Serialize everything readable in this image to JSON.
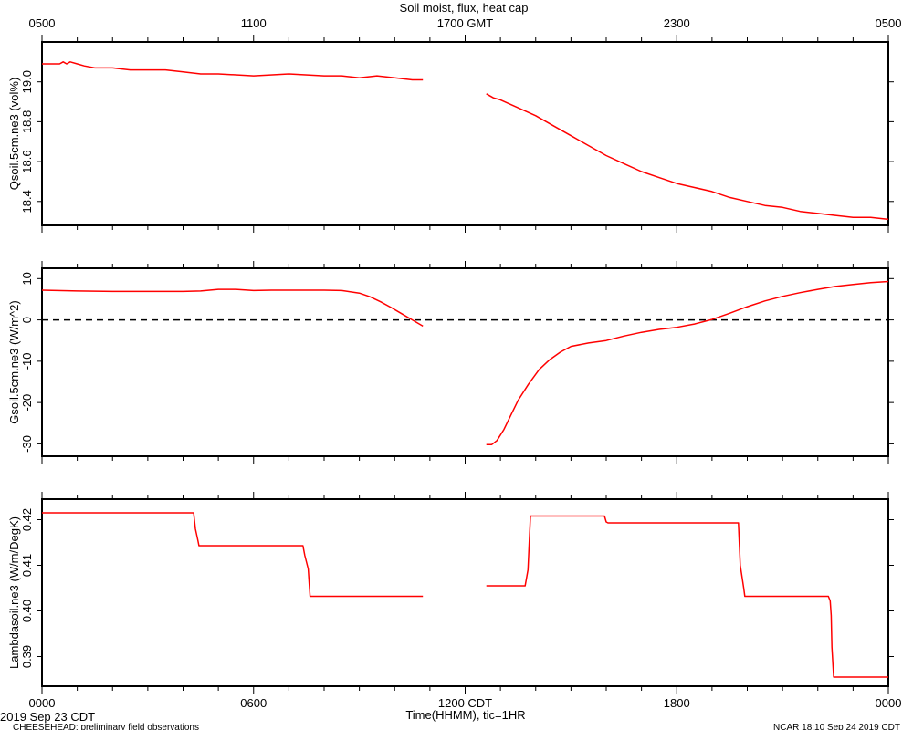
{
  "title": "Soil moist, flux, heat cap",
  "top_axis": {
    "ticks": [
      "0500",
      "1100",
      "1700 GMT",
      "2300",
      "0500"
    ]
  },
  "bottom_axis": {
    "ticks": [
      "0000",
      "0600",
      "1200 CDT",
      "1800",
      "0000"
    ],
    "label": "Time(HHMM), tic=1HR"
  },
  "footer": {
    "date": "2019 Sep 23 CDT",
    "project": "CHEESEHEAD: preliminary field observations",
    "stamp": "NCAR 18:10 Sep 24 2019 CDT"
  },
  "colors": {
    "series": "#ff0000",
    "axes": "#000000",
    "zero_line": "#000000"
  },
  "chart_data": [
    {
      "type": "line",
      "ylabel": "Qsoil.5cm.ne3 (vol%)",
      "xlim": [
        0,
        24
      ],
      "ylim": [
        18.28,
        19.2
      ],
      "yticks": [
        18.4,
        18.6,
        18.8,
        19.0
      ],
      "ytick_labels": [
        "18.4",
        "18.6",
        "18.8",
        "19.0"
      ],
      "segments": [
        {
          "x": [
            0,
            0.5,
            0.6,
            0.7,
            0.8,
            1.0,
            1.2,
            1.5,
            2.0,
            2.5,
            3.0,
            3.5,
            4.0,
            4.5,
            5.0,
            6.0,
            7.0,
            8.0,
            8.5,
            9.0,
            9.5,
            10.0,
            10.5,
            10.8
          ],
          "y": [
            19.09,
            19.09,
            19.1,
            19.09,
            19.1,
            19.09,
            19.08,
            19.07,
            19.07,
            19.06,
            19.06,
            19.06,
            19.05,
            19.04,
            19.04,
            19.03,
            19.04,
            19.03,
            19.03,
            19.02,
            19.03,
            19.02,
            19.01,
            19.01
          ]
        },
        {
          "x": [
            12.6,
            12.8,
            13.0,
            13.5,
            14.0,
            14.5,
            15.0,
            15.5,
            16.0,
            16.5,
            17.0,
            17.5,
            18.0,
            18.5,
            19.0,
            19.5,
            20.0,
            20.5,
            21.0,
            21.5,
            22.0,
            22.5,
            23.0,
            23.5,
            24.0
          ],
          "y": [
            18.94,
            18.92,
            18.91,
            18.87,
            18.83,
            18.78,
            18.73,
            18.68,
            18.63,
            18.59,
            18.55,
            18.52,
            18.49,
            18.47,
            18.45,
            18.42,
            18.4,
            18.38,
            18.37,
            18.35,
            18.34,
            18.33,
            18.32,
            18.32,
            18.31
          ]
        }
      ]
    },
    {
      "type": "line",
      "ylabel": "Gsoil.5cm.ne3 (W/m^2)",
      "xlim": [
        0,
        24
      ],
      "ylim": [
        -33,
        12.5
      ],
      "yticks": [
        -30,
        -20,
        -10,
        0,
        10
      ],
      "ytick_labels": [
        "-30",
        "-20",
        "-10",
        "0",
        "10"
      ],
      "reference_line": 0,
      "segments": [
        {
          "x": [
            0,
            1,
            2,
            3,
            4,
            4.5,
            5,
            5.5,
            6,
            6.5,
            7,
            7.5,
            8,
            8.5,
            9,
            9.3,
            9.6,
            9.9,
            10.2,
            10.5,
            10.8
          ],
          "y": [
            7.2,
            7.0,
            6.9,
            6.9,
            6.9,
            7.0,
            7.4,
            7.4,
            7.1,
            7.2,
            7.2,
            7.2,
            7.2,
            7.1,
            6.5,
            5.6,
            4.4,
            3.0,
            1.5,
            0,
            -1.5
          ]
        },
        {
          "x": [
            12.6,
            12.75,
            12.9,
            13.1,
            13.3,
            13.5,
            13.8,
            14.1,
            14.4,
            14.7,
            15.0,
            15.5,
            16.0,
            16.5,
            17.0,
            17.5,
            18.0,
            18.5,
            19.0,
            19.5,
            20.0,
            20.5,
            21.0,
            21.5,
            22.0,
            22.5,
            23.0,
            23.5,
            24.0
          ],
          "y": [
            -30.2,
            -30.2,
            -29.2,
            -26.5,
            -23.0,
            -19.5,
            -15.5,
            -12.0,
            -9.6,
            -7.8,
            -6.4,
            -5.6,
            -5.0,
            -3.9,
            -3.0,
            -2.3,
            -1.8,
            -1.0,
            0.1,
            1.6,
            3.2,
            4.6,
            5.7,
            6.6,
            7.4,
            8.1,
            8.6,
            9.0,
            9.3
          ]
        }
      ]
    },
    {
      "type": "line",
      "ylabel": "Lambdasoil.ne3 (W/m/DegK)",
      "xlim": [
        0,
        24
      ],
      "ylim": [
        0.3835,
        0.4245
      ],
      "yticks": [
        0.39,
        0.4,
        0.41,
        0.42
      ],
      "ytick_labels": [
        "0.39",
        "0.40",
        "0.41",
        "0.42"
      ],
      "segments": [
        {
          "x": [
            0,
            4.3,
            4.35,
            4.42,
            4.45,
            7.4,
            7.45,
            7.55,
            7.6,
            10.8
          ],
          "y": [
            0.4215,
            0.4215,
            0.418,
            0.4155,
            0.4143,
            0.4143,
            0.4122,
            0.4092,
            0.4032,
            0.4032
          ]
        },
        {
          "x": [
            12.6,
            13.7,
            13.78,
            13.85,
            15.95,
            16.0,
            16.05,
            19.75,
            19.8,
            19.9,
            19.93,
            22.3,
            22.35,
            22.38,
            22.4,
            22.45,
            24.0
          ],
          "y": [
            0.4055,
            0.4055,
            0.409,
            0.4208,
            0.4208,
            0.4195,
            0.4193,
            0.4193,
            0.41,
            0.405,
            0.4032,
            0.4032,
            0.4022,
            0.399,
            0.392,
            0.3855,
            0.3855
          ]
        }
      ]
    }
  ]
}
